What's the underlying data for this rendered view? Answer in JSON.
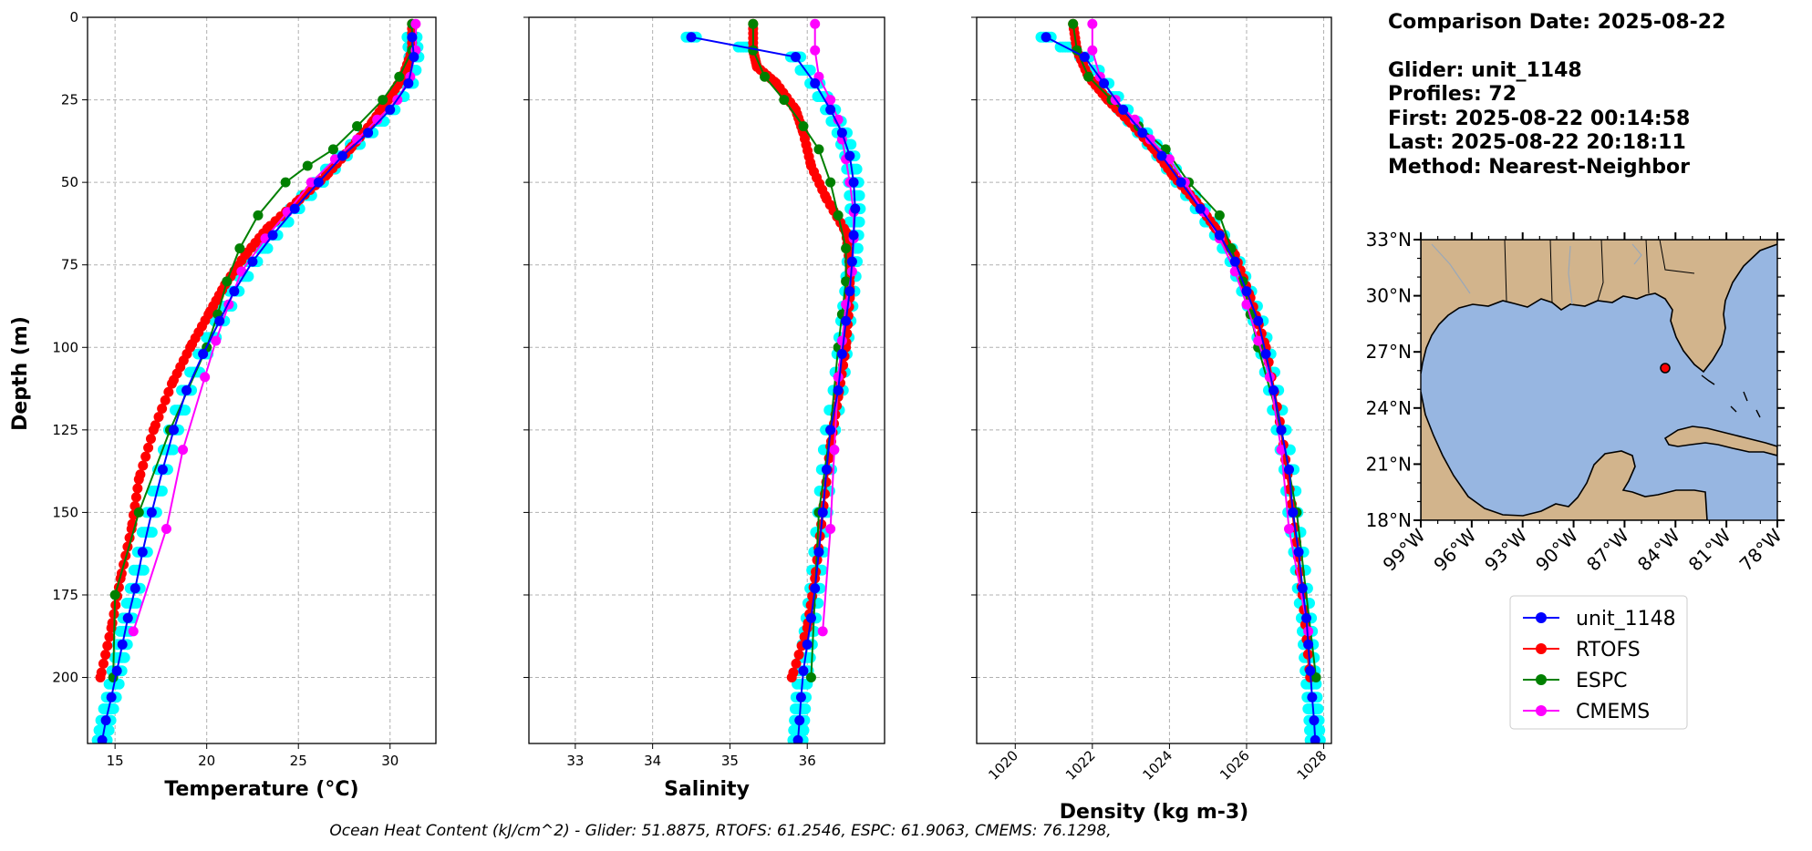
{
  "info": {
    "comparison_date": "Comparison Date: 2025-08-22",
    "glider": "Glider: unit_1148",
    "profiles": "Profiles: 72",
    "first": "First: 2025-08-22 00:14:58",
    "last": "Last: 2025-08-22 20:18:11",
    "method": "Method: Nearest-Neighbor"
  },
  "footer": "Ocean Heat Content (kJ/cm^2) - Glider: 51.8875,  RTOFS: 61.2546,  ESPC: 61.9063,  CMEMS: 76.1298,",
  "colors": {
    "glider": "#0000ff",
    "glider_scatter": "#00ffff",
    "rtofs": "#ff0000",
    "espc": "#008000",
    "cmems": "#ff00ff",
    "land": "#d2b48c",
    "ocean": "#97b6e1",
    "grid": "#b0b0b0"
  },
  "chart_data": [
    {
      "type": "line",
      "xlabel": "Temperature (°C)",
      "ylabel": "Depth (m)",
      "xlim": [
        13.5,
        32.5
      ],
      "ylim": [
        220,
        0
      ],
      "xticks": [
        15,
        20,
        25,
        30
      ],
      "yticks": [
        0,
        25,
        50,
        75,
        100,
        125,
        150,
        175,
        200
      ],
      "grid": true,
      "series": [
        {
          "name": "unit_1148",
          "x": [
            31.2,
            31.3,
            31.0,
            30.0,
            28.8,
            27.4,
            26.1,
            24.8,
            23.6,
            22.5,
            21.5,
            20.7,
            19.8,
            18.9,
            18.2,
            17.6,
            17.0,
            16.5,
            16.1,
            15.7,
            15.4,
            15.1,
            14.8,
            14.5,
            14.3
          ],
          "y": [
            6,
            12,
            20,
            28,
            35,
            42,
            50,
            58,
            66,
            74,
            83,
            92,
            102,
            113,
            125,
            137,
            150,
            162,
            173,
            182,
            190,
            198,
            206,
            213,
            219
          ]
        },
        {
          "name": "RTOFS",
          "x": [
            31.2,
            31.2,
            30.7,
            29.9,
            29.0,
            27.8,
            26.5,
            24.9,
            23.3,
            22.1,
            21.0,
            20.1,
            19.1,
            18.1,
            17.1,
            16.3,
            15.9,
            15.3,
            14.8,
            14.2
          ],
          "y": [
            2,
            10,
            18,
            25,
            32,
            40,
            48,
            56,
            64,
            72,
            81,
            90,
            100,
            111,
            125,
            140,
            155,
            170,
            185,
            200
          ]
        },
        {
          "name": "ESPC",
          "x": [
            31.2,
            31.2,
            30.5,
            29.6,
            28.2,
            26.9,
            25.5,
            24.3,
            22.8,
            21.8,
            21.1,
            20.6,
            20.0,
            18.0,
            16.3,
            15.0,
            14.9
          ],
          "y": [
            2,
            10,
            18,
            25,
            33,
            40,
            45,
            50,
            60,
            70,
            80,
            90,
            100,
            125,
            150,
            175,
            200
          ]
        },
        {
          "name": "CMEMS",
          "x": [
            31.4,
            31.4,
            31.1,
            30.4,
            29.3,
            28.2,
            27.0,
            25.7,
            24.4,
            23.2,
            21.9,
            21.2,
            20.5,
            19.9,
            18.7,
            17.8,
            16.0
          ],
          "y": [
            2,
            10,
            18,
            25,
            31,
            37,
            43,
            50,
            59,
            67,
            77,
            87,
            98,
            109,
            131,
            155,
            186
          ]
        }
      ]
    },
    {
      "type": "line",
      "xlabel": "Salinity",
      "ylabel": "",
      "xlim": [
        32.4,
        37.0
      ],
      "ylim": [
        220,
        0
      ],
      "xticks": [
        33,
        34,
        35,
        36
      ],
      "yticks": [
        0,
        25,
        50,
        75,
        100,
        125,
        150,
        175,
        200
      ],
      "grid": true,
      "series": [
        {
          "name": "unit_1148",
          "x": [
            34.5,
            35.85,
            36.1,
            36.3,
            36.45,
            36.55,
            36.6,
            36.62,
            36.6,
            36.58,
            36.55,
            36.5,
            36.45,
            36.4,
            36.3,
            36.25,
            36.2,
            36.15,
            36.1,
            36.05,
            36.0,
            35.95,
            35.92,
            35.9,
            35.88
          ],
          "y": [
            6,
            12,
            20,
            28,
            35,
            42,
            50,
            58,
            66,
            74,
            83,
            92,
            102,
            113,
            125,
            137,
            150,
            162,
            173,
            182,
            190,
            198,
            206,
            213,
            219
          ]
        },
        {
          "name": "RTOFS",
          "x": [
            35.3,
            35.3,
            35.35,
            35.6,
            35.85,
            35.95,
            36.05,
            36.25,
            36.5,
            36.55,
            36.55,
            36.5,
            36.4,
            36.3,
            36.2,
            36.1,
            36.0,
            35.8
          ],
          "y": [
            2,
            10,
            15,
            20,
            28,
            35,
            45,
            55,
            65,
            75,
            85,
            100,
            115,
            130,
            150,
            170,
            185,
            200
          ]
        },
        {
          "name": "ESPC",
          "x": [
            35.3,
            35.3,
            35.45,
            35.7,
            35.95,
            36.15,
            36.3,
            36.4,
            36.5,
            36.5,
            36.45,
            36.4,
            36.3,
            36.15,
            36.05
          ],
          "y": [
            2,
            10,
            18,
            25,
            33,
            40,
            50,
            60,
            70,
            80,
            90,
            100,
            125,
            150,
            200
          ]
        },
        {
          "name": "CMEMS",
          "x": [
            36.1,
            36.1,
            36.15,
            36.3,
            36.4,
            36.45,
            36.5,
            36.55,
            36.6,
            36.6,
            36.58,
            36.5,
            36.45,
            36.4,
            36.35,
            36.3,
            36.2
          ],
          "y": [
            2,
            10,
            18,
            25,
            31,
            37,
            43,
            50,
            59,
            67,
            77,
            87,
            98,
            109,
            131,
            155,
            186
          ]
        }
      ]
    },
    {
      "type": "line",
      "xlabel": "Density (kg m-3)",
      "ylabel": "",
      "xlim": [
        1019,
        1028.2
      ],
      "ylim": [
        220,
        0
      ],
      "xticks": [
        1020,
        1022,
        1024,
        1026,
        1028
      ],
      "yticks": [
        0,
        25,
        50,
        75,
        100,
        125,
        150,
        175,
        200
      ],
      "grid": true,
      "series": [
        {
          "name": "unit_1148",
          "x": [
            1020.8,
            1021.8,
            1022.3,
            1022.8,
            1023.3,
            1023.8,
            1024.3,
            1024.8,
            1025.3,
            1025.7,
            1026.0,
            1026.3,
            1026.5,
            1026.7,
            1026.9,
            1027.1,
            1027.2,
            1027.35,
            1027.45,
            1027.55,
            1027.6,
            1027.65,
            1027.7,
            1027.75,
            1027.78
          ],
          "y": [
            6,
            12,
            20,
            28,
            35,
            42,
            50,
            58,
            66,
            74,
            83,
            92,
            102,
            113,
            125,
            137,
            150,
            162,
            173,
            182,
            190,
            198,
            206,
            213,
            219
          ]
        },
        {
          "name": "RTOFS",
          "x": [
            1021.5,
            1021.6,
            1021.9,
            1022.4,
            1023.0,
            1023.6,
            1024.1,
            1024.7,
            1025.2,
            1025.7,
            1026.1,
            1026.5,
            1026.9,
            1027.2,
            1027.45,
            1027.65
          ],
          "y": [
            2,
            10,
            18,
            25,
            32,
            40,
            48,
            56,
            64,
            72,
            85,
            100,
            125,
            150,
            175,
            200
          ]
        },
        {
          "name": "ESPC",
          "x": [
            1021.5,
            1021.6,
            1021.9,
            1022.5,
            1023.2,
            1023.9,
            1024.5,
            1025.3,
            1025.6,
            1025.9,
            1026.1,
            1026.3,
            1026.9,
            1027.3,
            1027.8
          ],
          "y": [
            2,
            10,
            18,
            25,
            33,
            40,
            50,
            60,
            70,
            80,
            90,
            100,
            125,
            150,
            200
          ]
        },
        {
          "name": "CMEMS",
          "x": [
            1022.0,
            1022.0,
            1022.2,
            1022.6,
            1023.1,
            1023.5,
            1024.0,
            1024.4,
            1024.9,
            1025.3,
            1025.7,
            1026.0,
            1026.3,
            1026.6,
            1026.9,
            1027.1,
            1027.6
          ],
          "y": [
            2,
            10,
            18,
            25,
            31,
            37,
            43,
            50,
            59,
            67,
            77,
            87,
            98,
            109,
            131,
            155,
            186
          ]
        }
      ]
    }
  ],
  "map": {
    "lat_labels": [
      "33°N",
      "30°N",
      "27°N",
      "24°N",
      "21°N",
      "18°N"
    ],
    "lon_labels": [
      "99°W",
      "96°W",
      "93°W",
      "90°W",
      "87°W",
      "84°W",
      "81°W",
      "78°W"
    ],
    "lat_range": [
      18,
      33
    ],
    "lon_range": [
      -99,
      -78
    ],
    "glider_position": {
      "lat": 26.3,
      "lon": -84.3
    }
  },
  "legend": {
    "placement": "below-map",
    "entries": [
      "unit_1148",
      "RTOFS",
      "ESPC",
      "CMEMS"
    ]
  }
}
